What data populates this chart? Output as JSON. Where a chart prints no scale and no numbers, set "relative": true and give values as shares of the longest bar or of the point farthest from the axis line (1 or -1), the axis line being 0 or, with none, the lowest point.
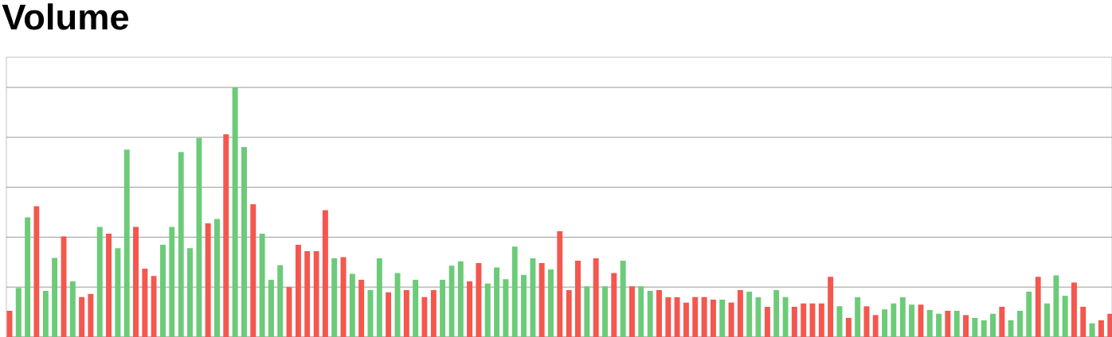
{
  "chart_data": {
    "type": "bar",
    "title": "Volume",
    "relative": true,
    "grid": "y",
    "categories": [
      null,
      null,
      null,
      null,
      null,
      null,
      null,
      null,
      null,
      null,
      null,
      null,
      null,
      null,
      null,
      null,
      null,
      null,
      null,
      null,
      null,
      null,
      null,
      null,
      null,
      null,
      null,
      null,
      null,
      null,
      null,
      null,
      null,
      null,
      null,
      null,
      null,
      null,
      null,
      null,
      null,
      null,
      null,
      null,
      null,
      null,
      null,
      null,
      null,
      null,
      null,
      null,
      null,
      null,
      null,
      null,
      null,
      null,
      null,
      null,
      null,
      null,
      null,
      null,
      null,
      null,
      null,
      null,
      null,
      null,
      null,
      null,
      null,
      null,
      null,
      null,
      null,
      null,
      null,
      null,
      null,
      null,
      null,
      null,
      null,
      null,
      null,
      null,
      null,
      null,
      null,
      null,
      null,
      null,
      null,
      null,
      null,
      null,
      null,
      null,
      null,
      null,
      null,
      null,
      null,
      null,
      null,
      null,
      null,
      null,
      null,
      null,
      null,
      null,
      null,
      null,
      null,
      null,
      null,
      null,
      null,
      null,
      null
    ],
    "values": [
      0.105,
      0.197,
      0.479,
      0.524,
      0.185,
      0.317,
      0.403,
      0.223,
      0.161,
      0.173,
      0.441,
      0.414,
      0.356,
      0.751,
      0.441,
      0.274,
      0.244,
      0.37,
      0.441,
      0.741,
      0.356,
      0.798,
      0.455,
      0.473,
      0.812,
      1.0,
      0.761,
      0.532,
      0.414,
      0.229,
      0.288,
      0.2,
      0.37,
      0.344,
      0.344,
      0.508,
      0.315,
      0.32,
      0.253,
      0.229,
      0.188,
      0.315,
      0.179,
      0.256,
      0.188,
      0.229,
      0.161,
      0.188,
      0.229,
      0.286,
      0.303,
      0.223,
      0.296,
      0.214,
      0.279,
      0.232,
      0.362,
      0.249,
      0.315,
      0.296,
      0.271,
      0.424,
      0.188,
      0.306,
      0.203,
      0.315,
      0.203,
      0.256,
      0.306,
      0.203,
      0.203,
      0.185,
      0.188,
      0.159,
      0.159,
      0.138,
      0.161,
      0.161,
      0.15,
      0.15,
      0.138,
      0.188,
      0.182,
      0.159,
      0.121,
      0.188,
      0.161,
      0.121,
      0.135,
      0.135,
      0.135,
      0.241,
      0.123,
      0.076,
      0.159,
      0.123,
      0.088,
      0.111,
      0.135,
      0.159,
      0.13,
      0.13,
      0.108,
      0.093,
      0.105,
      0.105,
      0.088,
      0.076,
      0.067,
      0.093,
      0.121,
      0.067,
      0.105,
      0.182,
      0.241,
      0.135,
      0.247,
      0.165,
      0.218,
      0.121,
      0.055,
      0.067,
      0.093
    ],
    "colors": [
      "#f4574e",
      "#6ccb79",
      "#6ccb79",
      "#f4574e",
      "#6ccb79",
      "#6ccb79",
      "#f4574e",
      "#6ccb79",
      "#f4574e",
      "#f4574e",
      "#6ccb79",
      "#f4574e",
      "#6ccb79",
      "#6ccb79",
      "#f4574e",
      "#f4574e",
      "#f4574e",
      "#6ccb79",
      "#6ccb79",
      "#6ccb79",
      "#6ccb79",
      "#6ccb79",
      "#f4574e",
      "#6ccb79",
      "#f4574e",
      "#6ccb79",
      "#6ccb79",
      "#f4574e",
      "#6ccb79",
      "#6ccb79",
      "#6ccb79",
      "#f4574e",
      "#f4574e",
      "#f4574e",
      "#f4574e",
      "#f4574e",
      "#6ccb79",
      "#f4574e",
      "#6ccb79",
      "#f4574e",
      "#6ccb79",
      "#6ccb79",
      "#f4574e",
      "#6ccb79",
      "#f4574e",
      "#6ccb79",
      "#f4574e",
      "#f4574e",
      "#6ccb79",
      "#6ccb79",
      "#6ccb79",
      "#f4574e",
      "#f4574e",
      "#6ccb79",
      "#6ccb79",
      "#6ccb79",
      "#6ccb79",
      "#6ccb79",
      "#6ccb79",
      "#f4574e",
      "#6ccb79",
      "#f4574e",
      "#f4574e",
      "#f4574e",
      "#6ccb79",
      "#f4574e",
      "#6ccb79",
      "#f4574e",
      "#6ccb79",
      "#f4574e",
      "#6ccb79",
      "#6ccb79",
      "#f4574e",
      "#f4574e",
      "#f4574e",
      "#f4574e",
      "#f4574e",
      "#f4574e",
      "#f4574e",
      "#6ccb79",
      "#f4574e",
      "#f4574e",
      "#6ccb79",
      "#6ccb79",
      "#f4574e",
      "#6ccb79",
      "#6ccb79",
      "#f4574e",
      "#f4574e",
      "#f4574e",
      "#f4574e",
      "#f4574e",
      "#6ccb79",
      "#f4574e",
      "#6ccb79",
      "#f4574e",
      "#f4574e",
      "#6ccb79",
      "#6ccb79",
      "#6ccb79",
      "#6ccb79",
      "#f4574e",
      "#6ccb79",
      "#6ccb79",
      "#f4574e",
      "#6ccb79",
      "#f4574e",
      "#6ccb79",
      "#6ccb79",
      "#6ccb79",
      "#f4574e",
      "#6ccb79",
      "#6ccb79",
      "#6ccb79",
      "#f4574e",
      "#6ccb79",
      "#6ccb79",
      "#6ccb79",
      "#f4574e",
      "#f4574e",
      "#6ccb79",
      "#f4574e",
      "#f4574e"
    ]
  }
}
